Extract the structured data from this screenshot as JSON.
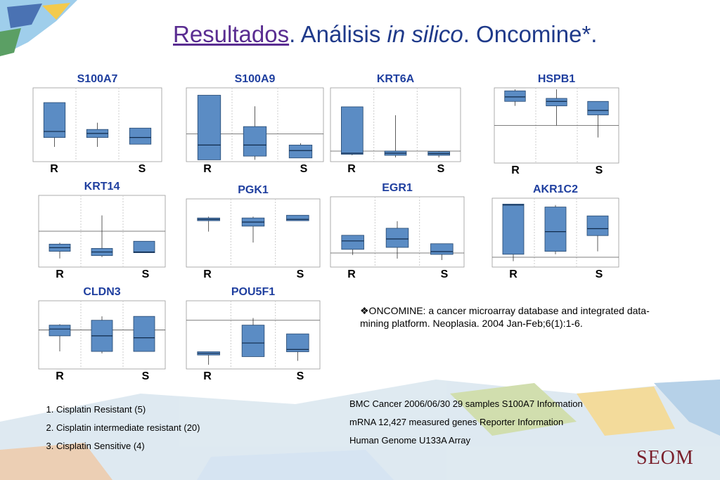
{
  "title": {
    "link": "Resultados",
    "part1": ". Análisis ",
    "italic": "in silico",
    "part2": ". Oncomine*."
  },
  "group_labels": [
    "R",
    "S"
  ],
  "box_color": "#5b8cc4",
  "panels": [
    {
      "gene": "S100A7",
      "ylim": [
        -2.5,
        3.0
      ],
      "boxes": [
        [
          -1.4,
          -0.7,
          -0.25,
          1.9,
          1.9
        ],
        [
          -1.4,
          -0.7,
          -0.4,
          -0.1,
          0.4
        ],
        [
          -1.2,
          -1.2,
          -0.7,
          0.0,
          0.0
        ]
      ]
    },
    {
      "gene": "S100A9",
      "ylim": [
        -1.5,
        2.5
      ],
      "ref": 0,
      "boxes": [
        [
          -1.4,
          -1.4,
          -0.6,
          2.1,
          2.1
        ],
        [
          -1.4,
          -1.2,
          -0.6,
          0.4,
          1.5
        ],
        [
          -1.3,
          -1.3,
          -0.9,
          -0.6,
          -0.5
        ]
      ]
    },
    {
      "gene": "KRT6A",
      "ylim": [
        -0.5,
        3.0
      ],
      "ref": 0,
      "boxes": [
        [
          -0.2,
          -0.15,
          -0.1,
          2.1,
          2.1
        ],
        [
          -0.3,
          -0.2,
          -0.1,
          0.0,
          1.7
        ],
        [
          -0.3,
          -0.2,
          -0.12,
          -0.03,
          0.0
        ]
      ]
    },
    {
      "gene": "HSPB1",
      "ylim": [
        -2.5,
        2.5
      ],
      "ref": 0,
      "boxes": [
        [
          1.3,
          1.6,
          1.9,
          2.3,
          2.4
        ],
        [
          0.0,
          1.3,
          1.6,
          1.8,
          2.4
        ],
        [
          -0.8,
          0.7,
          1.0,
          1.6,
          1.6
        ]
      ]
    },
    {
      "gene": "KRT14",
      "ylim": [
        -2.5,
        2.5
      ],
      "ref": 0,
      "boxes": [
        [
          -1.9,
          -1.4,
          -1.15,
          -0.9,
          -0.8
        ],
        [
          -1.8,
          -1.7,
          -1.45,
          -1.2,
          1.1
        ],
        [
          -1.5,
          -1.5,
          -1.45,
          -0.7,
          -0.7
        ]
      ]
    },
    {
      "gene": "PGK1",
      "ylim": [
        0,
        2.5
      ],
      "boxes": [
        [
          1.3,
          1.7,
          1.75,
          1.8,
          1.85
        ],
        [
          0.9,
          1.5,
          1.65,
          1.8,
          1.85
        ],
        [
          1.7,
          1.7,
          1.75,
          1.9,
          1.9
        ]
      ]
    },
    {
      "gene": "EGR1",
      "ylim": [
        -0.5,
        2.0
      ],
      "ref": 0,
      "boxes": [
        [
          -0.07,
          0.13,
          0.43,
          0.63,
          0.63
        ],
        [
          -0.2,
          0.2,
          0.5,
          0.88,
          1.13
        ],
        [
          -0.25,
          -0.05,
          0.05,
          0.33,
          0.33
        ]
      ]
    },
    {
      "gene": "AKR1C2",
      "ylim": [
        -0.5,
        3.0
      ],
      "ref": 0,
      "boxes": [
        [
          -0.2,
          0.15,
          2.65,
          2.7,
          2.7
        ],
        [
          0.15,
          0.3,
          1.3,
          2.55,
          2.65
        ],
        [
          0.3,
          1.1,
          1.45,
          2.1,
          2.1
        ]
      ]
    },
    {
      "gene": "CLDN3",
      "ylim": [
        -2.0,
        1.5
      ],
      "ref": 0,
      "boxes": [
        [
          -1.1,
          -0.3,
          0.05,
          0.25,
          0.3
        ],
        [
          -1.2,
          -1.1,
          -0.3,
          0.5,
          0.7
        ],
        [
          -1.1,
          -1.1,
          -0.4,
          0.7,
          0.7
        ]
      ]
    },
    {
      "gene": "POU5F1",
      "ylim": [
        -1.5,
        0.6
      ],
      "ref": 0,
      "boxes": [
        [
          -1.37,
          -1.07,
          -1.02,
          -0.97,
          -0.97
        ],
        [
          -1.12,
          -1.12,
          -0.7,
          -0.15,
          0.07
        ],
        [
          -1.25,
          -0.97,
          -0.9,
          -0.42,
          -0.42
        ]
      ]
    }
  ],
  "legend": [
    "Cisplatin Resistant (5)",
    "Cisplatin intermediate resistant (20)",
    "Cisplatin Sensitive (4)"
  ],
  "oncomine_note": "❖ONCOMINE: a cancer microarray database and integrated data-mining platform. Neoplasia. 2004 Jan-Feb;6(1):1-6.",
  "info": [
    "BMC Cancer 2006/06/30 29 samples S100A7 Information",
    "mRNA 12,427 measured genes Reporter Information",
    "Human Genome U133A Array"
  ],
  "logo": "SEOM"
}
